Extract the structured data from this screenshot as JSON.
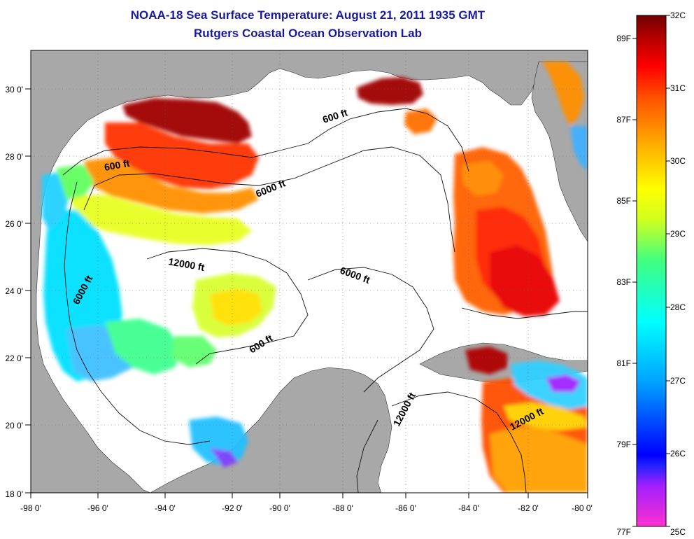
{
  "header": {
    "title": "NOAA-18 Sea Surface Temperature:  August 21, 2011 1935 GMT",
    "subtitle": "Rutgers Coastal Ocean Observation Lab"
  },
  "axes": {
    "lon_ticks": [
      "-98 0'",
      "-96 0'",
      "-94 0'",
      "-92 0'",
      "-90 0'",
      "-88 0'",
      "-86 0'",
      "-84 0'",
      "-82 0'",
      "-80 0'"
    ],
    "lat_ticks": [
      "18 0'",
      "20 0'",
      "22 0'",
      "24 0'",
      "26 0'",
      "28 0'",
      "30 0'"
    ]
  },
  "contours": [
    "600 ft",
    "600 ft",
    "6000 ft",
    "6000 ft",
    "12000 ft",
    "6000 ft",
    "600 ft",
    "12000 ft",
    "12000 ft"
  ],
  "colorbar": {
    "celsius": [
      "32C",
      "31C",
      "30C",
      "29C",
      "28C",
      "27C",
      "26C",
      "25C"
    ],
    "fahrenheit": [
      "89F",
      "87F",
      "85F",
      "83F",
      "81F",
      "79F",
      "77F"
    ]
  },
  "colors": {
    "land": "#a8a8a8",
    "no_data": "#ffffff",
    "title": "#1a1aa0",
    "scale": [
      "#ff40c0",
      "#6020ff",
      "#0000ff",
      "#00a0ff",
      "#00ffff",
      "#40ff80",
      "#ffff00",
      "#ffb000",
      "#ff6000",
      "#ff0000",
      "#a00000",
      "#700000"
    ]
  }
}
